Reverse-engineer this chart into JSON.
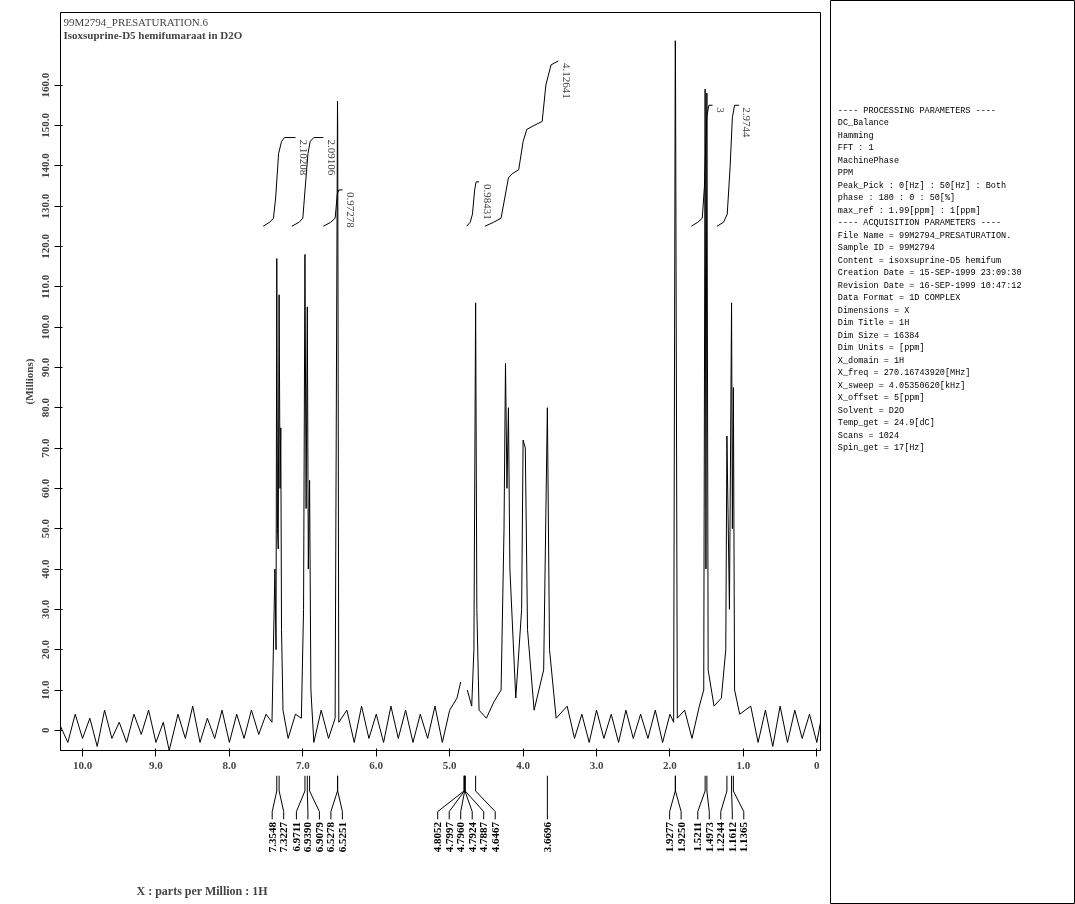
{
  "chart_data": [
    {
      "type": "line",
      "title": "99M2794_PRESATURATION.6",
      "subtitle": "Isoxsuprine-D5 hemifumaraat in D2O",
      "xlabel": "X : parts per Million : 1H",
      "ylabel": "(Millions)",
      "xlim": [
        10.3,
        -0.05
      ],
      "ylim": [
        -5,
        178
      ],
      "xticks": [
        {
          "value": 10,
          "label": "10.0"
        },
        {
          "value": 9,
          "label": "9.0"
        },
        {
          "value": 8,
          "label": "8.0"
        },
        {
          "value": 7,
          "label": "7.0"
        },
        {
          "value": 6,
          "label": "6.0"
        },
        {
          "value": 5,
          "label": "5.0"
        },
        {
          "value": 4,
          "label": "4.0"
        },
        {
          "value": 3,
          "label": "3.0"
        },
        {
          "value": 2,
          "label": "2.0"
        },
        {
          "value": 1,
          "label": "1.0"
        },
        0
      ],
      "yticks": [
        0,
        {
          "value": 10,
          "label": "10.0"
        },
        {
          "value": 20,
          "label": "20.0"
        },
        {
          "value": 30,
          "label": "30.0"
        },
        {
          "value": 40,
          "label": "40.0"
        },
        {
          "value": 50,
          "label": "50.0"
        },
        {
          "value": 60,
          "label": "60.0"
        },
        {
          "value": 70,
          "label": "70.0"
        },
        {
          "value": 80,
          "label": "80.0"
        },
        {
          "value": 90,
          "label": "90.0"
        },
        {
          "value": 100,
          "label": "100.0"
        },
        {
          "value": 110,
          "label": "110.0"
        },
        {
          "value": 120,
          "label": "120.0"
        },
        {
          "value": 130,
          "label": "130.0"
        },
        {
          "value": 140,
          "label": "140.0"
        },
        {
          "value": 150,
          "label": "150.0"
        },
        {
          "value": 160,
          "label": "160.0"
        }
      ],
      "series": [
        {
          "color": "#000000",
          "x": [
            10.3,
            10.2,
            10.1,
            10.0,
            9.9,
            9.8,
            9.7,
            9.6,
            9.5,
            9.4,
            9.3,
            9.2,
            9.1,
            9.0,
            8.9,
            8.82,
            8.7,
            8.6,
            8.5,
            8.4,
            8.3,
            8.2,
            8.1,
            8.0,
            7.9,
            7.8,
            7.7,
            7.6,
            7.5,
            7.42,
            7.38,
            7.365,
            7.3548,
            7.345,
            7.335,
            7.3227,
            7.31,
            7.3,
            7.29,
            7.27,
            7.2,
            7.1,
            7.02,
            6.99,
            6.9711,
            6.955,
            6.939,
            6.925,
            6.9079,
            6.89,
            6.85,
            6.75,
            6.65,
            6.56,
            6.5278,
            6.5251,
            6.51,
            6.4,
            6.3,
            6.2,
            6.1,
            6.0,
            5.9,
            5.8,
            5.7,
            5.6,
            5.5,
            5.4,
            5.3,
            5.2,
            5.1,
            5.0,
            4.9,
            4.85,
            4.8052,
            4.7997,
            4.796,
            4.7924,
            4.7887,
            4.76,
            4.7,
            4.67,
            4.6467,
            4.63,
            4.6,
            4.5,
            4.4,
            4.3,
            4.26,
            4.24,
            4.22,
            4.2,
            4.18,
            4.1,
            4.02,
            4.0,
            3.97,
            3.94,
            3.85,
            3.72,
            3.6696,
            3.64,
            3.55,
            3.4,
            3.3,
            3.2,
            3.1,
            3.0,
            2.9,
            2.8,
            2.7,
            2.6,
            2.5,
            2.4,
            2.3,
            2.2,
            2.1,
            2.0,
            1.95,
            1.9277,
            1.925,
            1.9,
            1.8,
            1.7,
            1.6,
            1.54,
            1.5211,
            1.51,
            1.4973,
            1.48,
            1.4,
            1.3,
            1.24,
            1.2244,
            1.19,
            1.1612,
            1.15,
            1.1365,
            1.12,
            1.05,
            0.9,
            0.8,
            0.7,
            0.6,
            0.5,
            0.4,
            0.3,
            0.2,
            0.1,
            0.0,
            -0.05
          ],
          "values": [
            1,
            -3,
            4,
            -2,
            3,
            -4,
            5,
            -2,
            2,
            -3,
            4,
            -1,
            5,
            -3,
            2,
            -5,
            4,
            -2,
            6,
            -3,
            3,
            -2,
            5,
            -3,
            4,
            -2,
            5,
            -1,
            4,
            2,
            40,
            20,
            117,
            50,
            45,
            108,
            60,
            75,
            25,
            5,
            -2,
            4,
            3,
            30,
            118,
            55,
            105,
            40,
            62,
            10,
            -3,
            5,
            -2,
            3,
            156,
            150,
            2,
            5,
            -3,
            6,
            -2,
            4,
            -3,
            6,
            -2,
            5,
            -3,
            4,
            -2,
            6,
            -3,
            5,
            8,
            12,
            null,
            null,
            null,
            null,
            null,
            10,
            6,
            20,
            106,
            30,
            5,
            3,
            7,
            10,
            50,
            91,
            60,
            80,
            40,
            8,
            30,
            72,
            70,
            25,
            5,
            15,
            80,
            20,
            3,
            6,
            -2,
            4,
            -3,
            5,
            -2,
            4,
            -3,
            5,
            -2,
            4,
            -2,
            5,
            -3,
            4,
            2,
            171,
            168,
            3,
            5,
            -2,
            6,
            10,
            159,
            40,
            158,
            15,
            6,
            8,
            20,
            73,
            30,
            106,
            50,
            85,
            10,
            4,
            6,
            -3,
            5,
            -4,
            6,
            -3,
            5,
            -2,
            4,
            -3,
            2
          ]
        },
        {
          "color": "#000000",
          "x": [
            7.54,
            7.45,
            7.4,
            7.37,
            7.33,
            7.29,
            7.25,
            7.1
          ],
          "values": [
            125,
            126,
            127,
            132,
            143,
            146,
            147,
            147
          ]
        },
        {
          "color": "#000000",
          "x": [
            7.15,
            7.05,
            7.0,
            6.97,
            6.93,
            6.9,
            6.85,
            6.72
          ],
          "values": [
            125,
            126,
            127,
            134,
            143,
            146,
            147,
            147
          ]
        },
        {
          "color": "#000000",
          "x": [
            6.72,
            6.62,
            6.56,
            6.53,
            6.51,
            6.46
          ],
          "values": [
            125,
            126,
            127,
            133,
            134,
            134
          ]
        },
        {
          "color": "#000000",
          "x": [
            4.77,
            4.72,
            4.69,
            4.66,
            4.64,
            4.6
          ],
          "values": [
            125,
            126,
            128,
            134,
            136,
            136
          ]
        },
        {
          "color": "#000000",
          "x": [
            4.52,
            4.4,
            4.3,
            4.26,
            4.2,
            4.15,
            4.06,
            4.0,
            3.95,
            3.85,
            3.74,
            3.69,
            3.62,
            3.52
          ],
          "values": [
            125,
            126,
            127,
            131,
            137,
            138,
            139,
            146,
            149,
            150,
            151,
            160,
            165,
            166
          ]
        },
        {
          "color": "#000000",
          "x": [
            1.71,
            1.62,
            1.56,
            1.53,
            1.5,
            1.47,
            1.42
          ],
          "values": [
            125,
            126,
            127,
            135,
            152,
            155,
            155
          ]
        },
        {
          "color": "#000000",
          "x": [
            1.36,
            1.27,
            1.22,
            1.18,
            1.15,
            1.12,
            1.06
          ],
          "values": [
            125,
            126,
            128,
            140,
            152,
            155,
            155
          ]
        }
      ],
      "annotations": [
        {
          "text": "2.10208",
          "x": 7.1,
          "y": 147
        },
        {
          "text": "2.09106",
          "x": 6.72,
          "y": 147
        },
        {
          "text": "0.97278",
          "x": 6.46,
          "y": 134
        },
        {
          "text": "0.98431",
          "x": 4.6,
          "y": 136
        },
        {
          "text": "4.12641",
          "x": 3.52,
          "y": 166
        },
        {
          "text": "3",
          "x": 1.42,
          "y": 155
        },
        {
          "text": "2.9744",
          "x": 1.06,
          "y": 155
        },
        {
          "text": "7.3548",
          "x": 7.3548
        },
        {
          "text": "7.3227",
          "x": 7.3227
        },
        {
          "text": "6.9711",
          "x": 6.9711
        },
        {
          "text": "6.9390",
          "x": 6.939
        },
        {
          "text": "6.9079",
          "x": 6.9079
        },
        {
          "text": "6.5278",
          "x": 6.5278
        },
        {
          "text": "6.5251",
          "x": 6.5251
        },
        {
          "text": "4.8052",
          "x": 4.8052
        },
        {
          "text": "4.7997",
          "x": 4.7997
        },
        {
          "text": "4.7960",
          "x": 4.796
        },
        {
          "text": "4.7924",
          "x": 4.7924
        },
        {
          "text": "4.7887",
          "x": 4.7887
        },
        {
          "text": "4.6467",
          "x": 4.6467
        },
        {
          "text": "3.6696",
          "x": 3.6696
        },
        {
          "text": "1.9277",
          "x": 1.9277
        },
        {
          "text": "1.9250",
          "x": 1.925
        },
        {
          "text": "1.5211",
          "x": 1.5211
        },
        {
          "text": "1.4973",
          "x": 1.4973
        },
        {
          "text": "1.2244",
          "x": 1.2244
        },
        {
          "text": "1.1612",
          "x": 1.1612
        },
        {
          "text": "1.1365",
          "x": 1.1365
        }
      ]
    },
    {
      "type": "other",
      "annotations": [
        "---- PROCESSING PARAMETERS ----",
        "DC_Balance",
        "Hamming",
        "FFT : 1",
        "MachinePhase",
        "PPM",
        "Peak_Pick : 0[Hz] : 50[Hz] : Both",
        "phase : 180 : 0 : 50[%]",
        "max_ref : 1.99[ppm] : 1[ppm]",
        "---- ACQUISITION PARAMETERS ----",
        "File Name      = 99M2794_PRESATURATION.",
        "Sample ID      = 99M2794",
        "Content        = isoxsuprine-D5 hemifum",
        "Creation Date  = 15-SEP-1999 23:09:30",
        "Revision Date  = 16-SEP-1999 10:47:12",
        "Data Format    = 1D COMPLEX",
        "Dimensions     = X",
        "Dim Title      = 1H",
        "Dim Size       = 16384",
        "Dim Units      = [ppm]",
        "X_domain = 1H",
        "X_freq   = 270.16743920[MHz]",
        "X_sweep  = 4.05350620[kHz]",
        "X_offset = 5[ppm]",
        "Solvent  = D2O",
        "Temp_get = 24.9[dC]",
        "Scans    = 1024",
        "Spin_get = 17[Hz]"
      ]
    }
  ]
}
